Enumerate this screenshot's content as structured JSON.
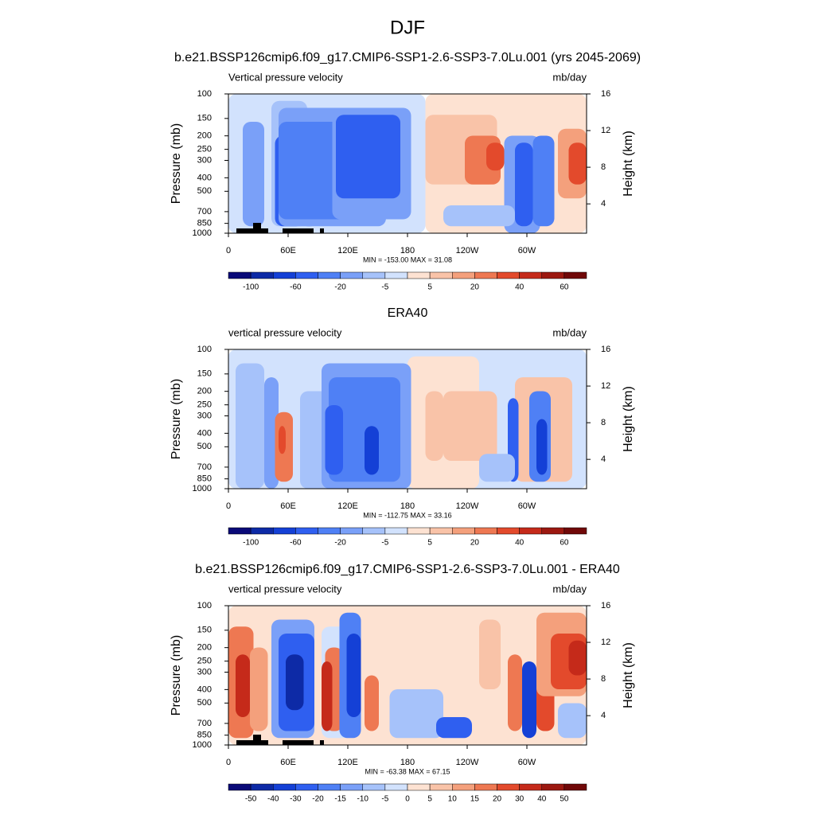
{
  "title": "DJF",
  "axes": {
    "ylabel": "Pressure (mb)",
    "y2label": "Height (km)",
    "log_y": true,
    "ylim": [
      100,
      1000
    ],
    "yticks": [
      100,
      150,
      200,
      250,
      300,
      400,
      500,
      700,
      850,
      1000
    ],
    "y2lim": [
      0.8,
      16
    ],
    "y2ticks": [
      4,
      8,
      12,
      16
    ],
    "xlim": [
      0,
      360
    ],
    "xticks": [
      0,
      {
        "value": 60,
        "label": "60E"
      },
      {
        "value": 120,
        "label": "120E"
      },
      180,
      {
        "value": 240,
        "label": "120W"
      },
      {
        "value": 300,
        "label": "60W"
      }
    ]
  },
  "colorbar_colors": [
    "#0a0a78",
    "#0d2aa6",
    "#1440d6",
    "#2f5ff0",
    "#4f80f5",
    "#7aa0f8",
    "#a6c2fa",
    "#d2e2fd",
    "#fde2d2",
    "#f9c3a8",
    "#f4a07c",
    "#ee7852",
    "#e34a2c",
    "#c52a1a",
    "#9c1810",
    "#700808"
  ],
  "panels": [
    {
      "title": "b.e21.BSSP126cmip6.f09_g17.CMIP6-SSP1-2.6-SSP3-7.0Lu.001 (yrs 2045-2069)",
      "left_label": "Vertical pressure velocity",
      "units": "mb/day",
      "min_max": "MIN = -153.00  MAX =  31.08",
      "colorbar_labels": [
        {
          "value": 1,
          "label": "-100"
        },
        {
          "value": 3,
          "label": "-60"
        },
        {
          "value": 5,
          "label": "-20"
        },
        {
          "value": 7,
          "label": "-5"
        },
        {
          "value": 9,
          "label": "5"
        },
        {
          "value": 11,
          "label": "20"
        },
        {
          "value": 13,
          "label": "40"
        },
        {
          "value": 15,
          "label": "60"
        }
      ]
    },
    {
      "title": "ERA40",
      "left_label": "vertical pressure velocity",
      "units": "mb/day",
      "min_max": "MIN = -112.75  MAX =  33.16",
      "colorbar_labels": [
        {
          "value": 1,
          "label": "-100"
        },
        {
          "value": 3,
          "label": "-60"
        },
        {
          "value": 5,
          "label": "-20"
        },
        {
          "value": 7,
          "label": "-5"
        },
        {
          "value": 9,
          "label": "5"
        },
        {
          "value": 11,
          "label": "20"
        },
        {
          "value": 13,
          "label": "40"
        },
        {
          "value": 15,
          "label": "60"
        }
      ]
    },
    {
      "title": "b.e21.BSSP126cmip6.f09_g17.CMIP6-SSP1-2.6-SSP3-7.0Lu.001 - ERA40",
      "left_label": "vertical pressure velocity",
      "units": "mb/day",
      "min_max": "MIN = -63.38  MAX =  67.15",
      "colorbar_labels": [
        {
          "value": 1,
          "label": "-50"
        },
        {
          "value": 2,
          "label": "-40"
        },
        {
          "value": 3,
          "label": "-30"
        },
        {
          "value": 4,
          "label": "-20"
        },
        {
          "value": 5,
          "label": "-15"
        },
        {
          "value": 6,
          "label": "-10"
        },
        {
          "value": 7,
          "label": "-5"
        },
        {
          "value": 8,
          "label": "0"
        },
        {
          "value": 9,
          "label": "5"
        },
        {
          "value": 10,
          "label": "10"
        },
        {
          "value": 11,
          "label": "15"
        },
        {
          "value": 12,
          "label": "20"
        },
        {
          "value": 13,
          "label": "30"
        },
        {
          "value": 14,
          "label": "40"
        },
        {
          "value": 15,
          "label": "50"
        }
      ]
    }
  ]
}
